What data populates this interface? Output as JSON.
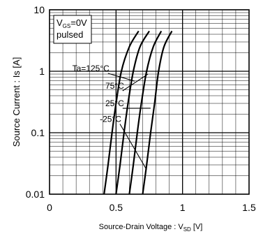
{
  "chart_data": {
    "type": "line",
    "title": "",
    "xlabel_main": "Source-Drain Voltage : V",
    "xlabel_sub": "SD",
    "xlabel_unit": " [V]",
    "ylabel": "Source Current : Is [A]",
    "x_scale": "linear",
    "y_scale": "log",
    "xlim": [
      0,
      1.5
    ],
    "ylim": [
      0.01,
      10
    ],
    "x_ticks": [
      {
        "value": 0,
        "label": "0"
      },
      {
        "value": 0.5,
        "label": "0.5"
      },
      {
        "value": 1,
        "label": "1"
      },
      {
        "value": 1.5,
        "label": "1.5"
      }
    ],
    "y_ticks": [
      {
        "value": 0.01,
        "label": "0.01"
      },
      {
        "value": 0.1,
        "label": "0.1"
      },
      {
        "value": 1,
        "label": "1"
      },
      {
        "value": 10,
        "label": "10"
      }
    ],
    "grid": true,
    "conditions": {
      "line1_main": "V",
      "line1_sub": "GS",
      "line1_rest": "=0V",
      "line2": "pulsed"
    },
    "series": [
      {
        "name": "Ta=125°C",
        "points": [
          [
            0.41,
            0.01
          ],
          [
            0.44,
            0.03
          ],
          [
            0.47,
            0.1
          ],
          [
            0.5,
            0.3
          ],
          [
            0.54,
            1
          ],
          [
            0.6,
            2.5
          ],
          [
            0.67,
            4.5
          ]
        ],
        "label_anchor": [
          0.45,
          1.0
        ]
      },
      {
        "name": "75°C",
        "points": [
          [
            0.5,
            0.01
          ],
          [
            0.53,
            0.03
          ],
          [
            0.56,
            0.1
          ],
          [
            0.59,
            0.3
          ],
          [
            0.63,
            1
          ],
          [
            0.68,
            2.5
          ],
          [
            0.75,
            4.5
          ]
        ],
        "label_anchor": [
          0.56,
          0.52
        ]
      },
      {
        "name": "25°C",
        "points": [
          [
            0.6,
            0.01
          ],
          [
            0.63,
            0.03
          ],
          [
            0.66,
            0.1
          ],
          [
            0.69,
            0.3
          ],
          [
            0.73,
            1
          ],
          [
            0.78,
            2.5
          ],
          [
            0.84,
            4.5
          ]
        ],
        "label_anchor": [
          0.56,
          0.27
        ]
      },
      {
        "name": "-25°C",
        "points": [
          [
            0.7,
            0.01
          ],
          [
            0.73,
            0.03
          ],
          [
            0.76,
            0.1
          ],
          [
            0.79,
            0.3
          ],
          [
            0.82,
            1
          ],
          [
            0.86,
            2.5
          ],
          [
            0.92,
            4.5
          ]
        ],
        "label_anchor": [
          0.54,
          0.15
        ]
      }
    ],
    "annotation_targets": [
      [
        0.64,
        0.69
      ],
      [
        0.74,
        0.9
      ],
      [
        0.76,
        0.25
      ],
      [
        0.73,
        0.025
      ]
    ]
  }
}
